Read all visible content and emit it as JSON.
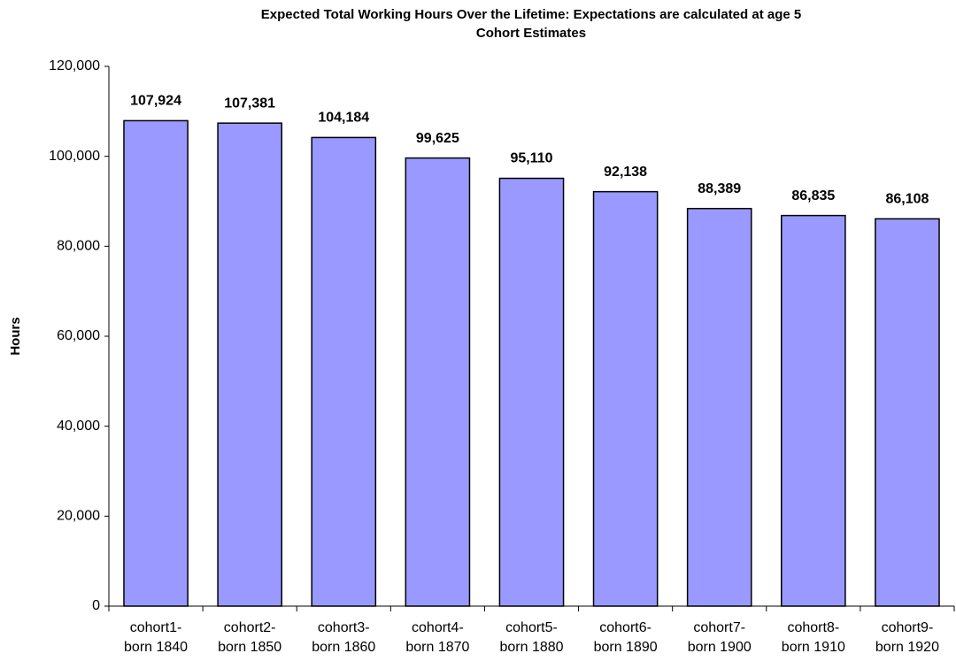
{
  "chart_data": {
    "type": "bar",
    "title": "Expected Total Working Hours Over the Lifetime: Expectations are calculated at age 5",
    "subtitle": "Cohort Estimates",
    "y_label": "Hours",
    "categories": [
      "cohort1-\nborn 1840",
      "cohort2-\nborn 1850",
      "cohort3-\nborn 1860",
      "cohort4-\nborn 1870",
      "cohort5-\nborn 1880",
      "cohort6-\nborn 1890",
      "cohort7-\nborn 1900",
      "cohort8-\nborn 1910",
      "cohort9-\nborn 1920"
    ],
    "values": [
      107924,
      107381,
      104184,
      99625,
      95110,
      92138,
      88389,
      86835,
      86108
    ],
    "value_labels": [
      "107,924",
      "107,381",
      "104,184",
      "99,625",
      "95,110",
      "92,138",
      "88,389",
      "86,835",
      "86,108"
    ],
    "color": "#9999ff",
    "ylim": [
      0,
      120000
    ],
    "yticks": [
      0,
      {
        "value": 20000,
        "label": "20,000"
      },
      {
        "value": 40000,
        "label": "40,000"
      },
      {
        "value": 60000,
        "label": "60,000"
      },
      {
        "value": 80000,
        "label": "80,000"
      },
      {
        "value": 100000,
        "label": "100,000"
      },
      {
        "value": 120000,
        "label": "120,000"
      }
    ],
    "grid": false
  }
}
